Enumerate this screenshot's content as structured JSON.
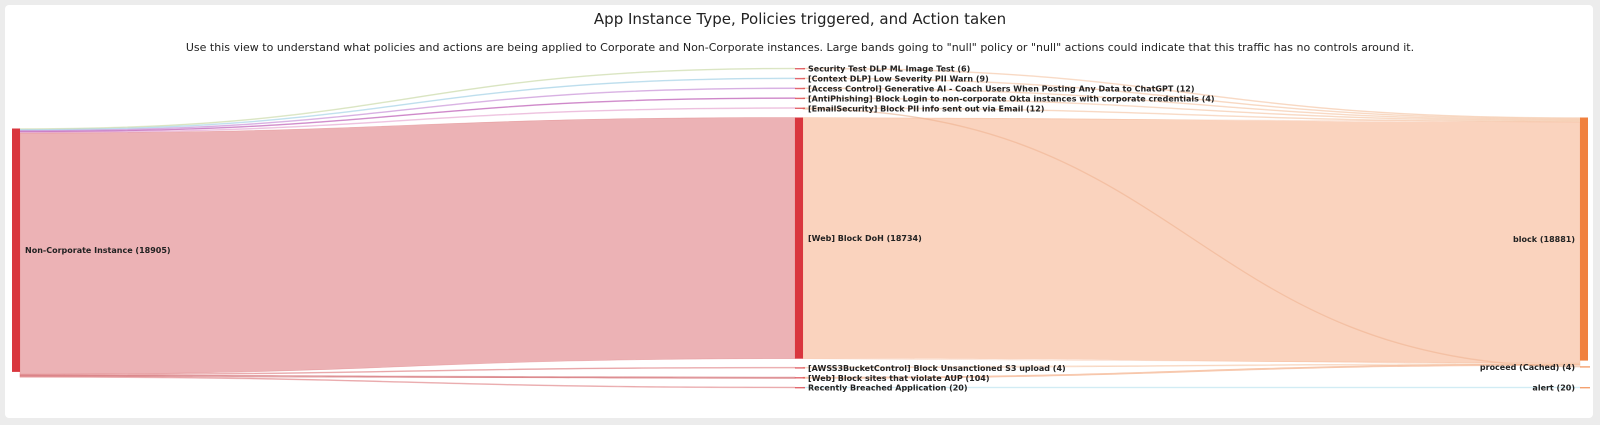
{
  "chart_data": {
    "type": "sankey",
    "title": "App Instance Type, Policies triggered, and Action taken",
    "subtitle": "Use this view to understand what policies and actions are being applied to Corporate and Non-Corporate instances. Large bands going to \"null\" policy or \"null\" actions could indicate that this traffic has no controls around it.",
    "nodes": [
      {
        "id": "src",
        "label": "Non-Corporate Instance (18905)",
        "value": 18905,
        "column": 0,
        "color": "#d9363e"
      },
      {
        "id": "p1",
        "label": "Security Test DLP ML Image Test (6)",
        "value": 6,
        "column": 1,
        "color": "#d9363e"
      },
      {
        "id": "p2",
        "label": "[Context DLP] Low Severity PII Warn (9)",
        "value": 9,
        "column": 1,
        "color": "#d9363e"
      },
      {
        "id": "p3",
        "label": "[Access Control] Generative AI - Coach Users When Posting Any Data to ChatGPT (12)",
        "value": 12,
        "column": 1,
        "color": "#d9363e"
      },
      {
        "id": "p4",
        "label": "[AntiPhishing] Block Login to non-corporate Okta instances with corporate credentials (4)",
        "value": 4,
        "column": 1,
        "color": "#d9363e"
      },
      {
        "id": "p5",
        "label": "[EmailSecurity] Block PII info sent out via Email (12)",
        "value": 12,
        "column": 1,
        "color": "#d9363e"
      },
      {
        "id": "p6",
        "label": "[Web] Block DoH (18734)",
        "value": 18734,
        "column": 1,
        "color": "#d9363e"
      },
      {
        "id": "p7",
        "label": "[AWSS3BucketControl] Block Unsanctioned S3 upload (4)",
        "value": 4,
        "column": 1,
        "color": "#d9363e"
      },
      {
        "id": "p8",
        "label": "[Web] Block sites that violate AUP (104)",
        "value": 104,
        "column": 1,
        "color": "#d9363e"
      },
      {
        "id": "p9",
        "label": "Recently Breached Application (20)",
        "value": 20,
        "column": 1,
        "color": "#d9363e"
      },
      {
        "id": "a1",
        "label": "block (18881)",
        "value": 18881,
        "column": 2,
        "color": "#f0813f"
      },
      {
        "id": "a2",
        "label": "proceed (Cached) (4)",
        "value": 4,
        "column": 2,
        "color": "#f0813f"
      },
      {
        "id": "a3",
        "label": "alert (20)",
        "value": 20,
        "column": 2,
        "color": "#f0813f"
      }
    ],
    "links": [
      {
        "source": "src",
        "target": "p1",
        "value": 6,
        "color": "#c9d9a6"
      },
      {
        "source": "src",
        "target": "p2",
        "value": 9,
        "color": "#9fd0e6"
      },
      {
        "source": "src",
        "target": "p3",
        "value": 12,
        "color": "#c58ad6"
      },
      {
        "source": "src",
        "target": "p4",
        "value": 4,
        "color": "#b84fb0"
      },
      {
        "source": "src",
        "target": "p5",
        "value": 12,
        "color": "#e6a3cf"
      },
      {
        "source": "src",
        "target": "p6",
        "value": 18734,
        "color": "#e07f84"
      },
      {
        "source": "src",
        "target": "p7",
        "value": 4,
        "color": "#e07f84"
      },
      {
        "source": "src",
        "target": "p8",
        "value": 104,
        "color": "#c94a50"
      },
      {
        "source": "src",
        "target": "p9",
        "value": 20,
        "color": "#e07f84"
      },
      {
        "source": "p1",
        "target": "a1",
        "value": 6,
        "color": "#f6c7a8"
      },
      {
        "source": "p2",
        "target": "a1",
        "value": 9,
        "color": "#f6c7a8"
      },
      {
        "source": "p3",
        "target": "a1",
        "value": 12,
        "color": "#f6c7a8"
      },
      {
        "source": "p4",
        "target": "a1",
        "value": 4,
        "color": "#f6c7a8"
      },
      {
        "source": "p5",
        "target": "a1",
        "value": 8,
        "color": "#f6c7a8"
      },
      {
        "source": "p5",
        "target": "a2",
        "value": 4,
        "color": "#e8b89a"
      },
      {
        "source": "p6",
        "target": "a1",
        "value": 18734,
        "color": "#f6b693"
      },
      {
        "source": "p7",
        "target": "a1",
        "value": 4,
        "color": "#f6c7a8"
      },
      {
        "source": "p8",
        "target": "a1",
        "value": 104,
        "color": "#f3a57a"
      },
      {
        "source": "p9",
        "target": "a3",
        "value": 20,
        "color": "#b9e3ef"
      }
    ]
  }
}
